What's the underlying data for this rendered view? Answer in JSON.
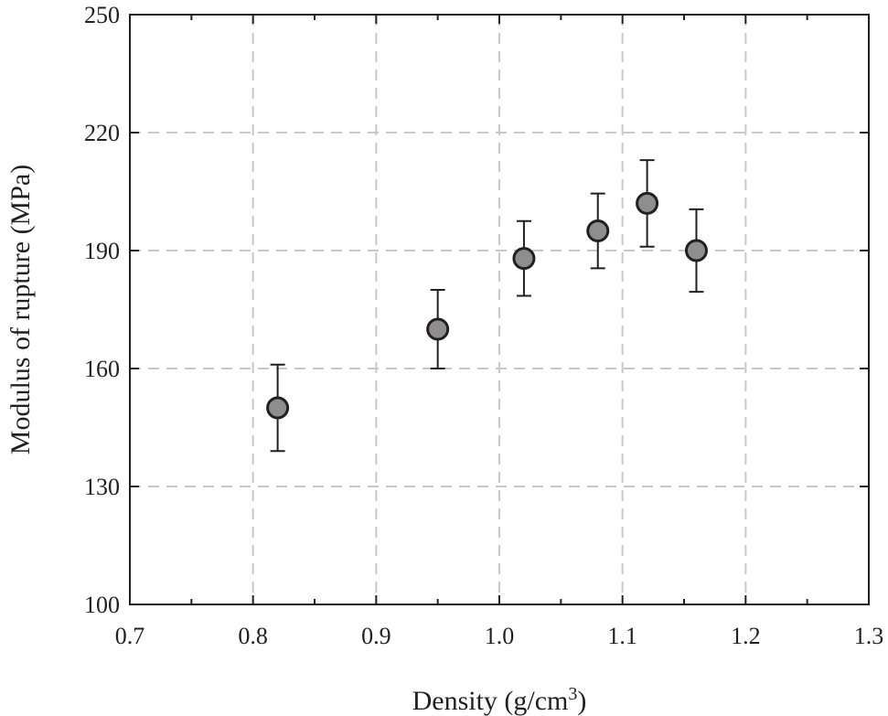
{
  "chart_data": {
    "type": "scatter",
    "title": "",
    "xlabel": "Density (g/cm",
    "xlabel_superscript": "3",
    "xlabel_suffix": ")",
    "ylabel": "Modulus of rupture (MPa)",
    "xlim": [
      0.7,
      1.3
    ],
    "ylim": [
      100,
      250
    ],
    "x_ticks": [
      0.7,
      0.8,
      0.9,
      1.0,
      1.1,
      1.2,
      1.3
    ],
    "x_tick_labels": [
      "0.7",
      "0.8",
      "0.9",
      "1.0",
      "1.1",
      "1.2",
      "1.3"
    ],
    "x_minor_ticks": [
      0.75,
      0.85,
      0.95,
      1.05,
      1.15,
      1.25
    ],
    "y_ticks": [
      100,
      130,
      160,
      190,
      220,
      250
    ],
    "y_tick_labels": [
      "100",
      "130",
      "160",
      "190",
      "220",
      "250"
    ],
    "grid": true,
    "colors": {
      "marker_fill": "#8e8e8e",
      "marker_edge": "#231f20",
      "grid": "#c8c8c8",
      "axis": "#231f20"
    },
    "series": [
      {
        "name": "Modulus of rupture",
        "points": [
          {
            "x": 0.82,
            "y": 150,
            "err_low": 139,
            "err_high": 161
          },
          {
            "x": 0.95,
            "y": 170,
            "err_low": 160,
            "err_high": 180
          },
          {
            "x": 1.02,
            "y": 188,
            "err_low": 178.5,
            "err_high": 197.5
          },
          {
            "x": 1.08,
            "y": 195,
            "err_low": 185.5,
            "err_high": 204.5
          },
          {
            "x": 1.12,
            "y": 202,
            "err_low": 191,
            "err_high": 213
          },
          {
            "x": 1.16,
            "y": 190,
            "err_low": 179.5,
            "err_high": 200.5
          }
        ]
      }
    ]
  }
}
